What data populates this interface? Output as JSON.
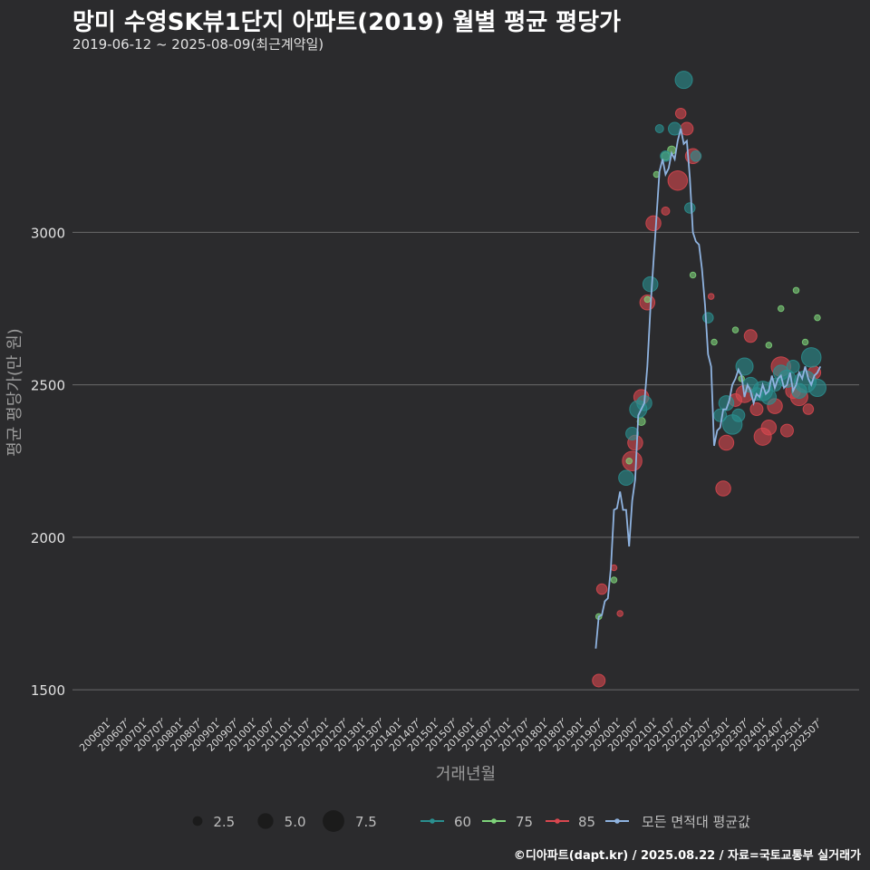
{
  "title": "망미 수영SK뷰1단지 아파트(2019) 월별 평균 평당가",
  "subtitle": "2019-06-12 ~ 2025-08-09(최근계약일)",
  "footer": "©디아파트(dapt.kr) / 2025.08.22 / 자료=국토교통부 실거래가",
  "colors": {
    "background": "#2b2b2d",
    "grid": "#6b6b6b",
    "s60": "#2a8f8f",
    "s75": "#7ed37a",
    "s85": "#d9474f",
    "avg": "#8fb3e0"
  },
  "chart_data": {
    "type": "scatter",
    "xlabel": "거래년월",
    "ylabel": "평균 평당가(만 원)",
    "ylim": [
      1420,
      3560
    ],
    "yticks": [
      1500,
      2000,
      2500,
      3000
    ],
    "x_domain_months": [
      "2006-01",
      "2025-10"
    ],
    "xticks": [
      "200601",
      "200607",
      "200701",
      "200707",
      "200801",
      "200807",
      "200901",
      "200907",
      "201001",
      "201007",
      "201101",
      "201107",
      "201201",
      "201207",
      "201301",
      "201307",
      "201401",
      "201407",
      "201501",
      "201507",
      "201601",
      "201607",
      "201701",
      "201707",
      "201801",
      "201807",
      "201901",
      "201907",
      "202001",
      "202007",
      "202101",
      "202107",
      "202201",
      "202207",
      "202301",
      "202307",
      "202401",
      "202407",
      "202501",
      "202507"
    ],
    "legend_size": {
      "values": [
        2.5,
        5.0,
        7.5
      ],
      "labels": [
        "2.5",
        "5.0",
        "7.5"
      ]
    },
    "legend_series": [
      {
        "key": "s60",
        "label": "60"
      },
      {
        "key": "s75",
        "label": "75"
      },
      {
        "key": "s85",
        "label": "85"
      },
      {
        "key": "avg",
        "label": "모든 면적대 평균값"
      }
    ],
    "avg_line": [
      [
        "2019-06",
        1635
      ],
      [
        "2019-07",
        1740
      ],
      [
        "2019-08",
        1745
      ],
      [
        "2019-09",
        1790
      ],
      [
        "2019-10",
        1800
      ],
      [
        "2019-11",
        1900
      ],
      [
        "2019-12",
        2090
      ],
      [
        "2020-01",
        2095
      ],
      [
        "2020-02",
        2150
      ],
      [
        "2020-03",
        2090
      ],
      [
        "2020-04",
        2090
      ],
      [
        "2020-05",
        1970
      ],
      [
        "2020-06",
        2120
      ],
      [
        "2020-07",
        2190
      ],
      [
        "2020-08",
        2400
      ],
      [
        "2020-09",
        2420
      ],
      [
        "2020-10",
        2440
      ],
      [
        "2020-11",
        2560
      ],
      [
        "2020-12",
        2750
      ],
      [
        "2021-01",
        2900
      ],
      [
        "2021-02",
        3050
      ],
      [
        "2021-03",
        3200
      ],
      [
        "2021-04",
        3240
      ],
      [
        "2021-05",
        3190
      ],
      [
        "2021-06",
        3210
      ],
      [
        "2021-07",
        3260
      ],
      [
        "2021-08",
        3240
      ],
      [
        "2021-09",
        3300
      ],
      [
        "2021-10",
        3340
      ],
      [
        "2021-11",
        3290
      ],
      [
        "2021-12",
        3300
      ],
      [
        "2022-01",
        3180
      ],
      [
        "2022-02",
        3000
      ],
      [
        "2022-03",
        2970
      ],
      [
        "2022-04",
        2960
      ],
      [
        "2022-05",
        2880
      ],
      [
        "2022-06",
        2760
      ],
      [
        "2022-07",
        2600
      ],
      [
        "2022-08",
        2560
      ],
      [
        "2022-09",
        2300
      ],
      [
        "2022-10",
        2350
      ],
      [
        "2022-11",
        2360
      ],
      [
        "2022-12",
        2420
      ],
      [
        "2023-01",
        2420
      ],
      [
        "2023-02",
        2450
      ],
      [
        "2023-03",
        2500
      ],
      [
        "2023-04",
        2520
      ],
      [
        "2023-05",
        2550
      ],
      [
        "2023-06",
        2530
      ],
      [
        "2023-07",
        2460
      ],
      [
        "2023-08",
        2500
      ],
      [
        "2023-09",
        2480
      ],
      [
        "2023-10",
        2440
      ],
      [
        "2023-11",
        2470
      ],
      [
        "2023-12",
        2460
      ],
      [
        "2024-01",
        2500
      ],
      [
        "2024-02",
        2470
      ],
      [
        "2024-03",
        2480
      ],
      [
        "2024-04",
        2530
      ],
      [
        "2024-05",
        2490
      ],
      [
        "2024-06",
        2520
      ],
      [
        "2024-07",
        2530
      ],
      [
        "2024-08",
        2490
      ],
      [
        "2024-09",
        2500
      ],
      [
        "2024-10",
        2540
      ],
      [
        "2024-11",
        2480
      ],
      [
        "2024-12",
        2500
      ],
      [
        "2025-01",
        2540
      ],
      [
        "2025-02",
        2520
      ],
      [
        "2025-03",
        2560
      ],
      [
        "2025-04",
        2520
      ],
      [
        "2025-05",
        2500
      ],
      [
        "2025-06",
        2530
      ],
      [
        "2025-07",
        2540
      ],
      [
        "2025-08",
        2560
      ]
    ],
    "points_60": [
      [
        "2020-04",
        2195,
        5
      ],
      [
        "2020-06",
        2340,
        4
      ],
      [
        "2020-08",
        2420,
        6
      ],
      [
        "2020-10",
        2440,
        5
      ],
      [
        "2020-12",
        2830,
        5
      ],
      [
        "2021-03",
        3340,
        2
      ],
      [
        "2021-05",
        3250,
        3
      ],
      [
        "2021-08",
        3340,
        4
      ],
      [
        "2021-11",
        3500,
        6
      ],
      [
        "2022-01",
        3080,
        3
      ],
      [
        "2022-03",
        3250,
        3
      ],
      [
        "2022-07",
        2720,
        3
      ],
      [
        "2022-11",
        2400,
        4
      ],
      [
        "2023-01",
        2440,
        5
      ],
      [
        "2023-03",
        2370,
        7
      ],
      [
        "2023-05",
        2400,
        4
      ],
      [
        "2023-07",
        2560,
        6
      ],
      [
        "2023-09",
        2500,
        5
      ],
      [
        "2023-11",
        2470,
        4
      ],
      [
        "2024-01",
        2480,
        7
      ],
      [
        "2024-03",
        2460,
        5
      ],
      [
        "2024-05",
        2500,
        4
      ],
      [
        "2024-07",
        2540,
        5
      ],
      [
        "2024-09",
        2520,
        6
      ],
      [
        "2024-11",
        2560,
        4
      ],
      [
        "2025-01",
        2480,
        5
      ],
      [
        "2025-03",
        2510,
        8
      ],
      [
        "2025-05",
        2590,
        7
      ],
      [
        "2025-07",
        2490,
        6
      ]
    ],
    "points_75": [
      [
        "2019-07",
        1740,
        1
      ],
      [
        "2019-12",
        1860,
        1
      ],
      [
        "2020-05",
        2250,
        1
      ],
      [
        "2020-09",
        2380,
        2
      ],
      [
        "2020-11",
        2780,
        1
      ],
      [
        "2021-02",
        3190,
        1
      ],
      [
        "2021-05",
        3250,
        2
      ],
      [
        "2021-07",
        3270,
        2
      ],
      [
        "2022-02",
        2860,
        1
      ],
      [
        "2022-09",
        2640,
        1
      ],
      [
        "2023-04",
        2680,
        1
      ],
      [
        "2023-06",
        2520,
        1
      ],
      [
        "2024-03",
        2630,
        1
      ],
      [
        "2024-07",
        2750,
        1
      ],
      [
        "2024-12",
        2810,
        1
      ],
      [
        "2025-03",
        2640,
        1
      ],
      [
        "2025-07",
        2720,
        1
      ]
    ],
    "points_85": [
      [
        "2019-07",
        1530,
        4
      ],
      [
        "2019-08",
        1830,
        3
      ],
      [
        "2019-12",
        1900,
        1
      ],
      [
        "2020-02",
        1750,
        1
      ],
      [
        "2020-06",
        2250,
        7
      ],
      [
        "2020-07",
        2310,
        5
      ],
      [
        "2020-09",
        2460,
        5
      ],
      [
        "2020-11",
        2770,
        5
      ],
      [
        "2021-01",
        3030,
        5
      ],
      [
        "2021-05",
        3070,
        2
      ],
      [
        "2021-09",
        3170,
        7
      ],
      [
        "2021-10",
        3390,
        3
      ],
      [
        "2021-12",
        3340,
        4
      ],
      [
        "2022-02",
        3250,
        5
      ],
      [
        "2022-08",
        2790,
        1
      ],
      [
        "2022-12",
        2160,
        5
      ],
      [
        "2023-01",
        2310,
        5
      ],
      [
        "2023-04",
        2450,
        4
      ],
      [
        "2023-07",
        2470,
        6
      ],
      [
        "2023-09",
        2660,
        4
      ],
      [
        "2023-11",
        2420,
        4
      ],
      [
        "2024-01",
        2330,
        6
      ],
      [
        "2024-03",
        2360,
        5
      ],
      [
        "2024-05",
        2430,
        5
      ],
      [
        "2024-07",
        2560,
        7
      ],
      [
        "2024-09",
        2350,
        4
      ],
      [
        "2024-11",
        2480,
        5
      ],
      [
        "2025-01",
        2460,
        6
      ],
      [
        "2025-04",
        2420,
        3
      ],
      [
        "2025-06",
        2540,
        4
      ]
    ]
  }
}
